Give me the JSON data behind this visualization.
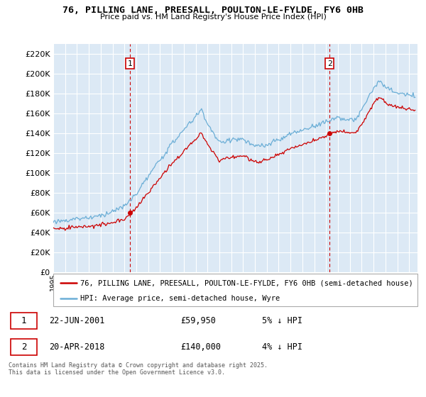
{
  "title": "76, PILLING LANE, PREESALL, POULTON-LE-FYLDE, FY6 0HB",
  "subtitle": "Price paid vs. HM Land Registry's House Price Index (HPI)",
  "background_color": "#ffffff",
  "plot_bg_color": "#dce9f5",
  "grid_color": "#ffffff",
  "legend_entry1": "76, PILLING LANE, PREESALL, POULTON-LE-FYLDE, FY6 0HB (semi-detached house)",
  "legend_entry2": "HPI: Average price, semi-detached house, Wyre",
  "footnote": "Contains HM Land Registry data © Crown copyright and database right 2025.\nThis data is licensed under the Open Government Licence v3.0.",
  "hpi_color": "#6baed6",
  "price_color": "#cc0000",
  "marker_color": "#cc0000",
  "dashed_color": "#cc0000",
  "ylim": [
    0,
    230000
  ],
  "yticks": [
    0,
    20000,
    40000,
    60000,
    80000,
    100000,
    120000,
    140000,
    160000,
    180000,
    200000,
    220000
  ],
  "t1": 2001.47,
  "t2": 2018.3,
  "p1": 59950,
  "p2": 140000,
  "year_start": 1995,
  "year_end": 2025
}
